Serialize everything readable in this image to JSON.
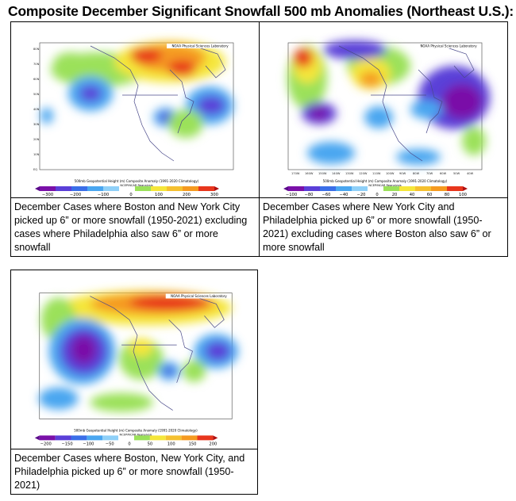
{
  "title": "Composite December Significant Snowfall 500 mb Anomalies (Northeast U.S.):",
  "panel_header": "NOAA Physical Sciences Laboratory",
  "panel_subtitle": "500mb Geopotential Height (m) Composite Anomaly (1991-2020 Climatology)",
  "panel_credit": "NCEP/NCAR Reanalysis",
  "lat_labels": [
    "80N",
    "70N",
    "60N",
    "50N",
    "40N",
    "30N",
    "20N",
    "10N",
    "EQ"
  ],
  "lon_labels": [
    "170W",
    "160W",
    "150W",
    "140W",
    "130W",
    "120W",
    "110W",
    "100W",
    "90W",
    "80W",
    "70W",
    "60W",
    "50W",
    "40W"
  ],
  "panels": [
    {
      "caption": "December Cases where Boston and New York City picked up 6” or more snowfall (1950-2021) excluding cases where Philadelphia also saw 6” or more snowfall",
      "scale": [
        "−300",
        "−200",
        "−100",
        "0",
        "100",
        "200",
        "300"
      ]
    },
    {
      "caption": "December Cases where New York City and Philadelphia picked up 6” or more snowfall (1950-2021) excluding cases where Boston also saw 6” or more snowfall",
      "scale": [
        "−100",
        "−80",
        "−60",
        "−40",
        "−20",
        "0",
        "20",
        "40",
        "60",
        "80",
        "100"
      ]
    },
    {
      "caption": "December Cases where Boston, New York City, and Philadelphia picked up 6” or more snowfall (1950-2021)",
      "scale": [
        "−200",
        "−150",
        "−100",
        "−50",
        "0",
        "50",
        "100",
        "150",
        "200"
      ]
    }
  ],
  "colors": {
    "neg_deep": "#7a10a8",
    "neg_mid": "#5a3fd8",
    "neg_light": "#4aa6f0",
    "pos_light": "#9be15a",
    "pos_mid": "#f5e63a",
    "pos_high": "#f59a20",
    "pos_deep": "#e8361d"
  }
}
